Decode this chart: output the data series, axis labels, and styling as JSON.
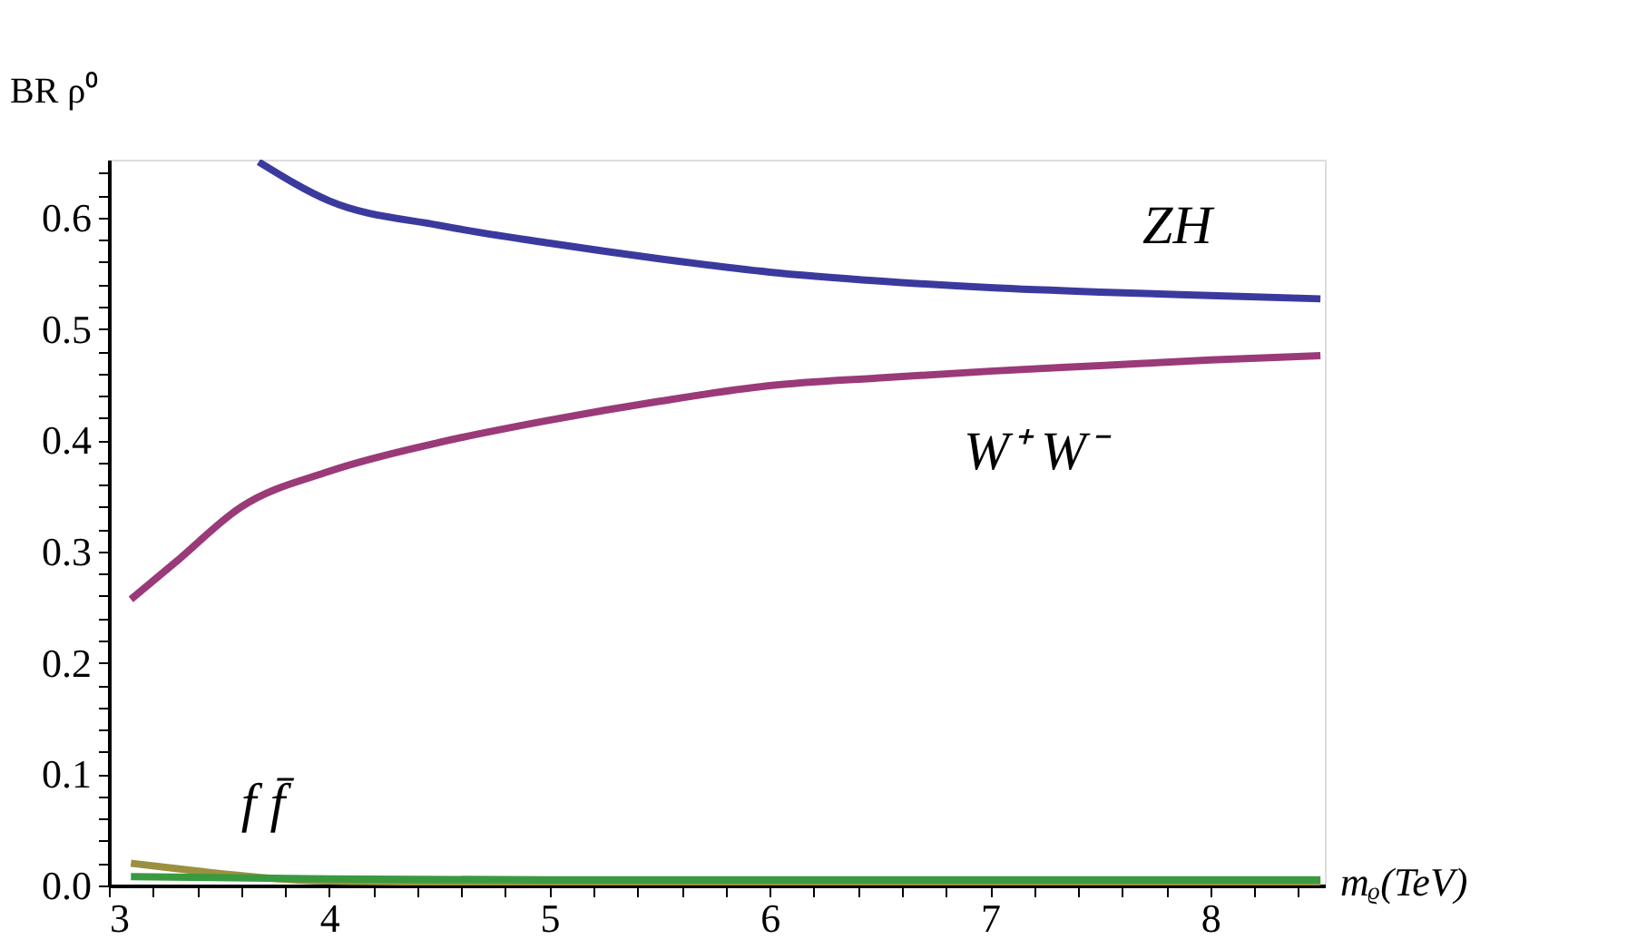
{
  "chart_data": {
    "type": "line",
    "xlabel": "mᵨ(TeV)",
    "ylabel": "BR ρ⁰",
    "xlim": [
      3,
      8.52
    ],
    "ylim": [
      0,
      0.652
    ],
    "xticks": [
      3,
      {
        "value": 3.2,
        "label": null
      },
      {
        "value": 3.4,
        "label": null
      },
      {
        "value": 3.6,
        "label": null
      },
      {
        "value": 3.8,
        "label": null
      },
      4,
      {
        "value": 4.2,
        "label": null
      },
      {
        "value": 4.4,
        "label": null
      },
      {
        "value": 4.6,
        "label": null
      },
      {
        "value": 4.8,
        "label": null
      },
      5,
      {
        "value": 5.2,
        "label": null
      },
      {
        "value": 5.4,
        "label": null
      },
      {
        "value": 5.6,
        "label": null
      },
      {
        "value": 5.8,
        "label": null
      },
      6,
      {
        "value": 6.2,
        "label": null
      },
      {
        "value": 6.4,
        "label": null
      },
      {
        "value": 6.6,
        "label": null
      },
      {
        "value": 6.8,
        "label": null
      },
      7,
      {
        "value": 7.2,
        "label": null
      },
      {
        "value": 7.4,
        "label": null
      },
      {
        "value": 7.6,
        "label": null
      },
      {
        "value": 7.8,
        "label": null
      },
      8,
      {
        "value": 8.2,
        "label": null
      },
      {
        "value": 8.4,
        "label": null
      }
    ],
    "yticks": [
      {
        "value": 0,
        "label": "0.0"
      },
      {
        "value": 0.02,
        "label": null
      },
      {
        "value": 0.04,
        "label": null
      },
      {
        "value": 0.06,
        "label": null
      },
      {
        "value": 0.08,
        "label": null
      },
      0.1,
      {
        "value": 0.12,
        "label": null
      },
      {
        "value": 0.14,
        "label": null
      },
      {
        "value": 0.16,
        "label": null
      },
      {
        "value": 0.18,
        "label": null
      },
      0.2,
      {
        "value": 0.22,
        "label": null
      },
      {
        "value": 0.24,
        "label": null
      },
      {
        "value": 0.26,
        "label": null
      },
      {
        "value": 0.28,
        "label": null
      },
      0.3,
      {
        "value": 0.32,
        "label": null
      },
      {
        "value": 0.34,
        "label": null
      },
      {
        "value": 0.36,
        "label": null
      },
      {
        "value": 0.38,
        "label": null
      },
      0.4,
      {
        "value": 0.42,
        "label": null
      },
      {
        "value": 0.44,
        "label": null
      },
      {
        "value": 0.46,
        "label": null
      },
      {
        "value": 0.48,
        "label": null
      },
      0.5,
      {
        "value": 0.52,
        "label": null
      },
      {
        "value": 0.54,
        "label": null
      },
      {
        "value": 0.56,
        "label": null
      },
      {
        "value": 0.58,
        "label": null
      },
      0.6,
      {
        "value": 0.62,
        "label": null
      },
      {
        "value": 0.64,
        "label": null
      }
    ],
    "grid": false,
    "line_style": "solid",
    "marker": "none",
    "series": [
      {
        "color": "#3a3a9e",
        "x": [
          3.68,
          4.0,
          4.5,
          5.0,
          5.5,
          6.0,
          6.5,
          7.0,
          7.5,
          8.0,
          8.5
        ],
        "values": [
          0.65,
          0.615,
          0.593,
          0.577,
          0.563,
          0.551,
          0.543,
          0.537,
          0.533,
          0.53,
          0.527
        ]
      },
      {
        "color": "#9a3a78",
        "x": [
          3.1,
          3.3,
          3.6,
          4.0,
          4.5,
          5.0,
          5.5,
          6.0,
          6.5,
          7.0,
          7.5,
          8.0,
          8.5
        ],
        "values": [
          0.257,
          0.29,
          0.34,
          0.372,
          0.398,
          0.418,
          0.435,
          0.449,
          0.456,
          0.462,
          0.467,
          0.472,
          0.476
        ]
      },
      {
        "color": "#9b9040",
        "x": [
          3.1,
          3.4,
          3.7,
          4.0,
          4.5,
          5.0,
          6.0,
          7.0,
          8.0,
          8.5
        ],
        "values": [
          0.02,
          0.013,
          0.007,
          0.004,
          0.003,
          0.002,
          0.002,
          0.002,
          0.002,
          0.002
        ]
      },
      {
        "color": "#3a9a40",
        "x": [
          3.1,
          4.0,
          5.0,
          6.0,
          7.0,
          8.0,
          8.5
        ],
        "values": [
          0.008,
          0.006,
          0.005,
          0.005,
          0.005,
          0.005,
          0.005
        ]
      }
    ],
    "annotations": [
      {
        "text": "ZH",
        "x": 7.85,
        "y": 0.53
      },
      {
        "text": "W⁺ W⁻",
        "x": 7.2,
        "y": 0.467
      },
      {
        "text": "f f̄",
        "x": 3.7,
        "y": 0.007
      }
    ]
  }
}
